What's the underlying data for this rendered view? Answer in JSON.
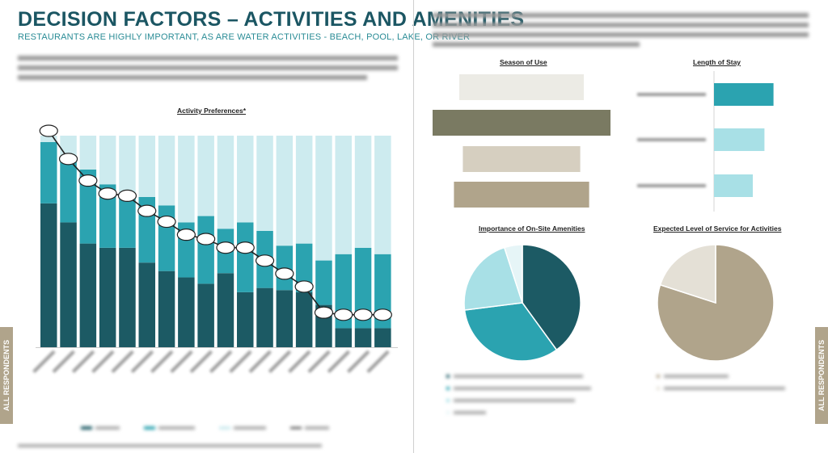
{
  "header": {
    "title": "DECISION FACTORS – ACTIVITIES AND AMENITIES",
    "subtitle": "RESTAURANTS ARE HIGHLY IMPORTANT, AS ARE WATER ACTIVITIES - BEACH, POOL, LAKE, OR RIVER"
  },
  "side_tabs": {
    "left": "ALL RESPONDENTS",
    "right": "ALL RESPONDENTS"
  },
  "colors": {
    "teal_dark": "#1c5a64",
    "teal_mid": "#2ba3b0",
    "teal_light": "#cdebef",
    "tan": "#b0a48b",
    "olive": "#7a7a62",
    "stone": "#d6cfc0"
  },
  "chart_data": [
    {
      "type": "bar",
      "title": "Activity Preferences*",
      "stacked": true,
      "categories": [
        "",
        "",
        "",
        "",
        "",
        "",
        "",
        "",
        "",
        "",
        "",
        "",
        "",
        "",
        "",
        "",
        "",
        ""
      ],
      "series": [
        {
          "color": "#1c5a64",
          "values": [
            68,
            59,
            49,
            47,
            47,
            40,
            36,
            33,
            30,
            35,
            26,
            28,
            27,
            26,
            20,
            9,
            9,
            9
          ]
        },
        {
          "color": "#2ba3b0",
          "values": [
            29,
            31,
            35,
            30,
            26,
            31,
            31,
            26,
            32,
            21,
            33,
            27,
            21,
            23,
            21,
            35,
            38,
            35
          ]
        },
        {
          "color": "#cdebef",
          "values": [
            3,
            10,
            16,
            23,
            27,
            29,
            33,
            41,
            38,
            44,
            41,
            45,
            52,
            51,
            59,
            56,
            53,
            56
          ]
        }
      ],
      "line": {
        "color": "#222222",
        "values": [
          10.0,
          8.7,
          7.7,
          7.1,
          7.0,
          6.3,
          5.8,
          5.2,
          5.0,
          4.6,
          4.6,
          4.0,
          3.4,
          2.8,
          1.6,
          1.5,
          1.5,
          1.5
        ]
      },
      "ylim": [
        0,
        100
      ],
      "line_ylim": [
        0,
        10
      ]
    },
    {
      "type": "bar",
      "title": "Season of Use",
      "orientation": "horizontal",
      "categories": [
        "",
        "",
        "",
        ""
      ],
      "values": [
        35,
        50,
        33,
        38
      ],
      "colors": [
        "#ecebe5",
        "#7a7a62",
        "#d6cfc0",
        "#b0a48b"
      ]
    },
    {
      "type": "bar",
      "title": "Length of Stay",
      "orientation": "horizontal",
      "categories": [
        "",
        "",
        ""
      ],
      "values": [
        46,
        39,
        30
      ],
      "colors": [
        "#2ba3b0",
        "#a8e0e6",
        "#a8e0e6"
      ]
    },
    {
      "type": "pie",
      "title": "Importance of On-Site Amenities",
      "values": [
        40,
        33,
        22,
        5
      ],
      "colors": [
        "#1c5a64",
        "#2ba3b0",
        "#a8e0e6",
        "#e6f5f7"
      ]
    },
    {
      "type": "pie",
      "title": "Expected Level of Service for Activities",
      "values": [
        80,
        20
      ],
      "colors": [
        "#b0a48b",
        "#e4e0d6"
      ]
    }
  ]
}
